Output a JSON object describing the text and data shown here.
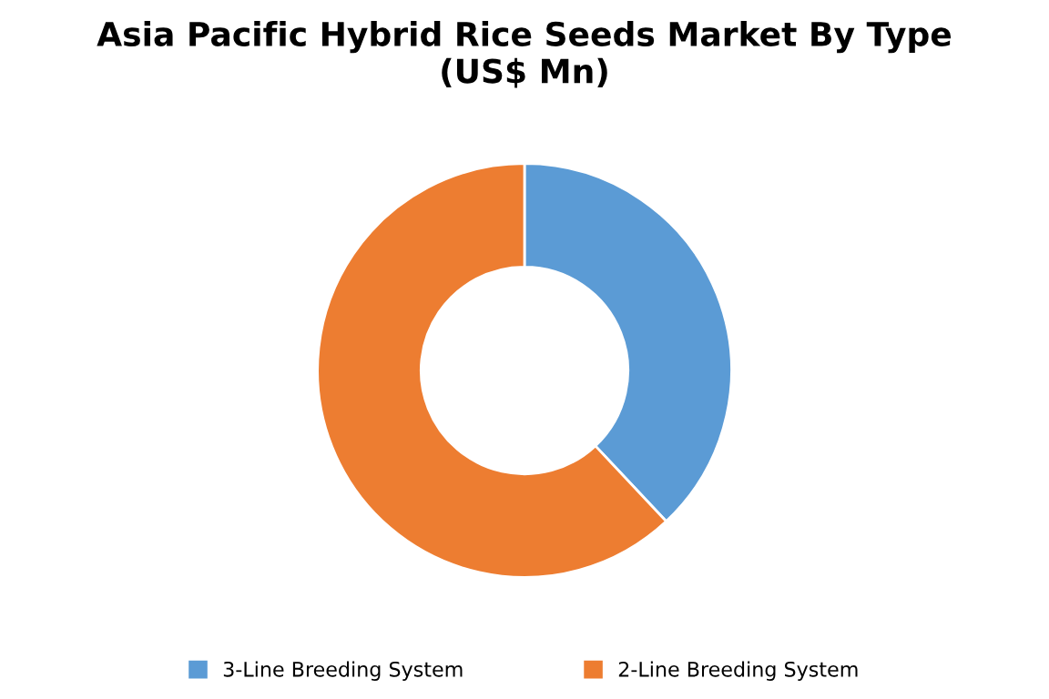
{
  "chart_data": {
    "type": "donut",
    "title": "Asia Pacific Hybrid Rice Seeds Market By Type\n(US$ Mn)",
    "categories": [
      "3-Line Breeding System",
      "2-Line Breeding System"
    ],
    "values": [
      38,
      62
    ],
    "colors": [
      "#5b9bd5",
      "#ed7d31"
    ],
    "legend": "bottom"
  }
}
